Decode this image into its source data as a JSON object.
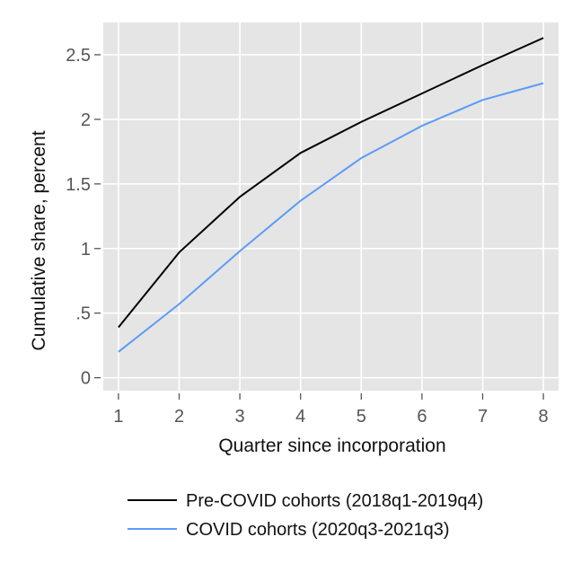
{
  "chart_data": {
    "type": "line",
    "x": [
      1,
      2,
      3,
      4,
      5,
      6,
      7,
      8
    ],
    "xlabel": "Quarter since incorporation",
    "ylabel": "Cumulative share, percent",
    "xlim": [
      0.75,
      8.25
    ],
    "ylim": [
      -0.1,
      2.75
    ],
    "xticks": [
      {
        "value": 1,
        "label": "1"
      },
      {
        "value": 2,
        "label": "2"
      },
      {
        "value": 3,
        "label": "3"
      },
      {
        "value": 4,
        "label": "4"
      },
      {
        "value": 5,
        "label": "5"
      },
      {
        "value": 6,
        "label": "6"
      },
      {
        "value": 7,
        "label": "7"
      },
      {
        "value": 8,
        "label": "8"
      }
    ],
    "yticks": [
      {
        "value": 0,
        "label": "0"
      },
      {
        "value": 0.5,
        "label": ".5"
      },
      {
        "value": 1,
        "label": "1"
      },
      {
        "value": 1.5,
        "label": "1.5"
      },
      {
        "value": 2,
        "label": "2"
      },
      {
        "value": 2.5,
        "label": "2.5"
      }
    ],
    "grid": true,
    "legend_position": "bottom",
    "series": [
      {
        "name": "Pre-COVID cohorts (2018q1-2019q4)",
        "color": "#000000",
        "values": [
          0.39,
          0.97,
          1.4,
          1.74,
          1.98,
          2.2,
          2.42,
          2.63
        ]
      },
      {
        "name": "COVID cohorts (2020q3-2021q3)",
        "color": "#5b9bf5",
        "values": [
          0.2,
          0.57,
          0.98,
          1.37,
          1.7,
          1.95,
          2.15,
          2.28
        ]
      }
    ]
  },
  "colors": {
    "plot_background": "#e5e5e5",
    "gridline": "#ffffff"
  }
}
